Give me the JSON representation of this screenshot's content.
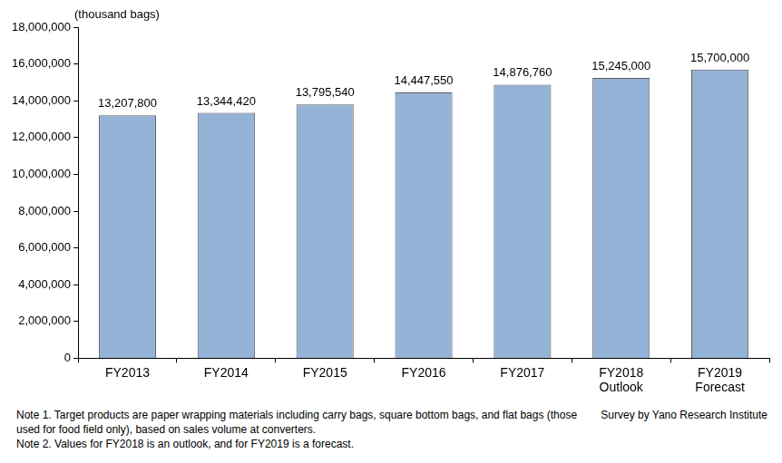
{
  "chart_data": {
    "type": "bar",
    "y_label": "(thousand bags)",
    "categories": [
      "FY2013",
      "FY2014",
      "FY2015",
      "FY2016",
      "FY2017",
      "FY2018\nOutlook",
      "FY2019\nForecast"
    ],
    "values": [
      13207800,
      13344420,
      13795540,
      14447550,
      14876760,
      15245000,
      15700000
    ],
    "value_labels": [
      "13,207,800",
      "13,344,420",
      "13,795,540",
      "14,447,550",
      "14,876,760",
      "15,245,000",
      "15,700,000"
    ],
    "data_labels": true,
    "color": "#95b3d7",
    "ylim": [
      0,
      18000000
    ],
    "yticks": [
      0,
      {
        "value": 2000000,
        "label": "2,000,000"
      },
      {
        "value": 4000000,
        "label": "4,000,000"
      },
      {
        "value": 6000000,
        "label": "6,000,000"
      },
      {
        "value": 8000000,
        "label": "8,000,000"
      },
      {
        "value": 10000000,
        "label": "10,000,000"
      },
      {
        "value": 12000000,
        "label": "12,000,000"
      },
      {
        "value": 14000000,
        "label": "14,000,000"
      },
      {
        "value": 16000000,
        "label": "16,000,000"
      },
      {
        "value": 18000000,
        "label": "18,000,000"
      }
    ],
    "grid": false,
    "annotations": [
      "Note 1.  Target products are paper wrapping materials including carry bags, square bottom bags, and flat bags (those used for food field only), based on sales volume at converters.",
      "Note 2.  Values for FY2018 is an outlook, and for FY2019 is a forecast."
    ],
    "source": "Survey by Yano Research Institute"
  }
}
